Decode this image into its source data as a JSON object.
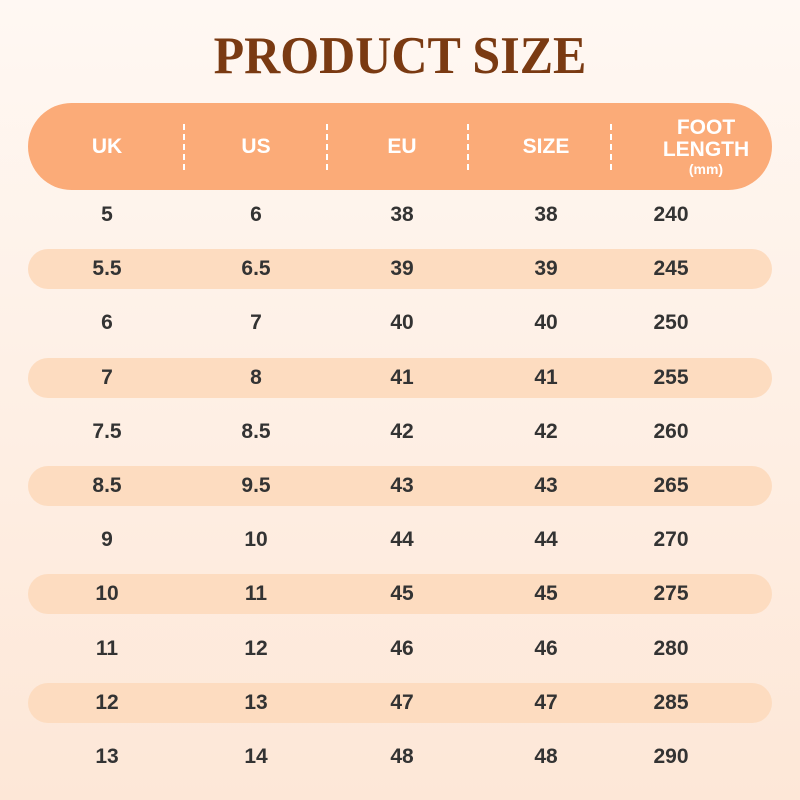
{
  "title": "PRODUCT SIZE",
  "colors": {
    "title": "#7a3a12",
    "header": "#fbab78",
    "band": "#fddcc0",
    "text": "#333333"
  },
  "header": {
    "uk": "UK",
    "us": "US",
    "eu": "EU",
    "size": "SIZE",
    "foot1": "FOOT",
    "foot2": "LENGTH",
    "foot_unit": "(mm)"
  },
  "rows": [
    [
      "5",
      "6",
      "38",
      "38",
      "240"
    ],
    [
      "5.5",
      "6.5",
      "39",
      "39",
      "245"
    ],
    [
      "6",
      "7",
      "40",
      "40",
      "250"
    ],
    [
      "7",
      "8",
      "41",
      "41",
      "255"
    ],
    [
      "7.5",
      "8.5",
      "42",
      "42",
      "260"
    ],
    [
      "8.5",
      "9.5",
      "43",
      "43",
      "265"
    ],
    [
      "9",
      "10",
      "44",
      "44",
      "270"
    ],
    [
      "10",
      "11",
      "45",
      "45",
      "275"
    ],
    [
      "11",
      "12",
      "46",
      "46",
      "280"
    ],
    [
      "12",
      "13",
      "47",
      "47",
      "285"
    ],
    [
      "13",
      "14",
      "48",
      "48",
      "290"
    ]
  ]
}
